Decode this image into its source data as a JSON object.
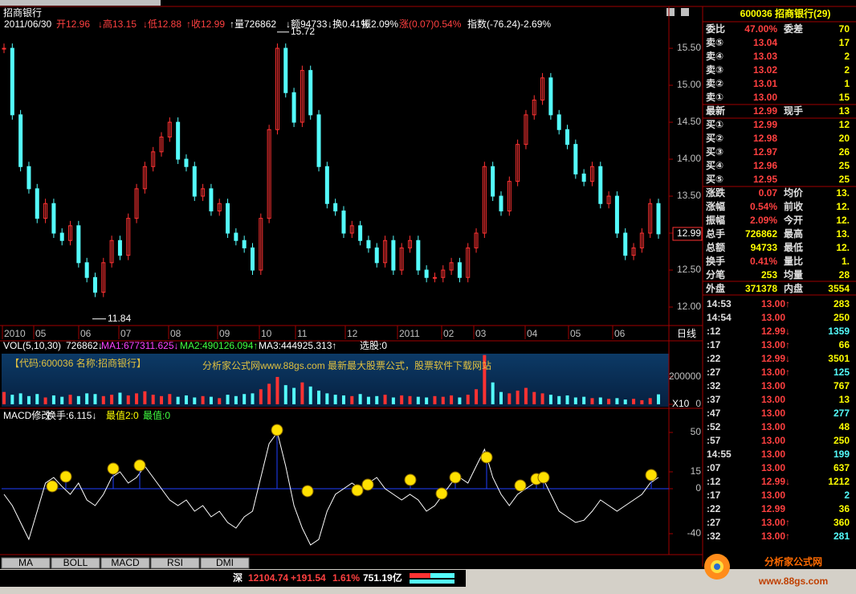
{
  "chart_title": "招商银行",
  "info": [
    {
      "text": "2011/06/30",
      "color": "#ffffff"
    },
    {
      "text": "开12.96",
      "color": "#ff4040"
    },
    {
      "text": "↓高13.15",
      "color": "#ff4040"
    },
    {
      "text": "↓低12.88",
      "color": "#ff4040"
    },
    {
      "text": "↑收12.99",
      "color": "#ff4040"
    },
    {
      "text": "↑量726862",
      "color": "#ffffff"
    },
    {
      "text": "↓额94733",
      "color": "#ffffff"
    },
    {
      "text": "↓换0.41%",
      "color": "#ffffff"
    },
    {
      "text": "振2.09%",
      "color": "#ffffff"
    },
    {
      "text": "涨(0.07)0.54%",
      "color": "#ff4040"
    },
    {
      "text": "指数(-76.24)-2.69%",
      "color": "#ffffff"
    }
  ],
  "price_chart": {
    "type": "candlestick",
    "up_color": "#ff3232",
    "down_color": "#54fcfc",
    "ylim": [
      11.75,
      15.74
    ],
    "yticks": [
      {
        "value": 12,
        "label": "12.00"
      },
      {
        "value": 12.5,
        "label": "12.50"
      },
      {
        "value": 13,
        "label": "13.00"
      },
      {
        "value": 13.5,
        "label": "13.50"
      },
      {
        "value": 14,
        "label": "14.00"
      },
      {
        "value": 14.5,
        "label": "14.50"
      },
      {
        "value": 15,
        "label": "15.00"
      },
      {
        "value": 15.5,
        "label": "15.50"
      }
    ],
    "closes": [
      15.5,
      14.6,
      13.9,
      13.6,
      13.2,
      13.4,
      13.0,
      12.9,
      13.1,
      12.6,
      12.4,
      12.2,
      12.6,
      12.9,
      12.7,
      13.2,
      13.6,
      13.9,
      14.1,
      14.3,
      14.5,
      14.0,
      13.9,
      13.5,
      13.6,
      13.3,
      13.4,
      13.0,
      12.9,
      12.8,
      12.5,
      13.2,
      14.4,
      15.5,
      14.9,
      14.5,
      15.2,
      14.6,
      13.9,
      13.4,
      13.3,
      13.0,
      13.1,
      12.9,
      12.8,
      12.6,
      12.9,
      12.5,
      12.8,
      12.9,
      12.5,
      12.4,
      12.4,
      12.5,
      12.6,
      12.4,
      12.8,
      13.0,
      13.9,
      13.5,
      13.3,
      13.7,
      14.2,
      14.6,
      14.8,
      15.1,
      14.6,
      14.4,
      14.2,
      13.8,
      13.7,
      13.9,
      13.4,
      13.5,
      13.0,
      12.7,
      12.8,
      13.0,
      13.4,
      12.99
    ],
    "high": 15.72,
    "low": 11.84,
    "last": 12.99,
    "dates": [
      "2010",
      "05",
      "06",
      "07",
      "08",
      "09",
      "10",
      "11",
      "12",
      "2011",
      "02",
      "03",
      "04",
      "05",
      "06"
    ],
    "period": "日线"
  },
  "volume": {
    "type": "bar",
    "header": [
      {
        "text": "VOL(5,10,30)",
        "color": "#ffffff"
      },
      {
        "text": "726862↓",
        "color": "#ffffff"
      },
      {
        "text": "MA1:677311.625↓",
        "color": "#ff40ff"
      },
      {
        "text": "MA2:490126.094↑",
        "color": "#40ff40"
      },
      {
        "text": "MA3:444925.313↑",
        "color": "#ffffff"
      },
      {
        "text": "选股:0",
        "color": "#ffffff"
      }
    ],
    "ylim": [
      0,
      370000
    ],
    "yticks": [
      0,
      200000
    ],
    "scale_label": "X10",
    "values": [
      90000,
      70000,
      80000,
      60000,
      75000,
      50000,
      65000,
      55000,
      70000,
      60000,
      80000,
      75000,
      60000,
      70000,
      85000,
      65000,
      80000,
      95000,
      70000,
      60000,
      75000,
      55000,
      65000,
      50000,
      60000,
      55000,
      45000,
      70000,
      60000,
      75000,
      80000,
      110000,
      150000,
      200000,
      140000,
      120000,
      160000,
      130000,
      100000,
      80000,
      70000,
      65000,
      60000,
      75000,
      55000,
      60000,
      70000,
      50000,
      65000,
      60000,
      55000,
      50000,
      60000,
      55000,
      65000,
      50000,
      70000,
      110000,
      360000,
      160000,
      90000,
      80000,
      100000,
      120000,
      90000,
      80000,
      70000,
      60000,
      65000,
      50000,
      55000,
      45000,
      50000,
      40000,
      45000,
      35000,
      40000,
      30000,
      45000,
      72686
    ],
    "overlay": [
      "【代码:600036 名称:招商银行】",
      "分析家公式网www.88gs.com 最新最大股票公式，股票软件下载网站"
    ]
  },
  "macd": {
    "type": "line",
    "color": "#ffffff",
    "header": [
      {
        "text": "MACD修改",
        "color": "#ffffff"
      },
      {
        "text": "换手:6.115↓",
        "color": "#ffffff"
      },
      {
        "text": "最值2:0",
        "color": "#ffff00"
      },
      {
        "text": "最值:0",
        "color": "#40ff40"
      }
    ],
    "ylim": [
      -58.6,
      59.3
    ],
    "yticks": [
      -40,
      0,
      15,
      50
    ],
    "values": [
      -5,
      -15,
      -30,
      -45,
      -20,
      5,
      10,
      2,
      -5,
      5,
      -10,
      -15,
      -5,
      10,
      15,
      5,
      10,
      20,
      10,
      0,
      -10,
      -15,
      -10,
      -20,
      -15,
      -25,
      -20,
      -30,
      -35,
      -25,
      -20,
      10,
      40,
      50,
      20,
      -15,
      -35,
      -50,
      -45,
      -20,
      -5,
      0,
      5,
      0,
      5,
      10,
      0,
      -5,
      -10,
      -5,
      -10,
      -20,
      -15,
      -5,
      5,
      10,
      5,
      20,
      35,
      10,
      -5,
      -15,
      -5,
      0,
      5,
      10,
      -5,
      -20,
      -25,
      -30,
      -28,
      -20,
      -10,
      -15,
      -20,
      -15,
      -10,
      -5,
      5,
      10
    ]
  },
  "tabs": [
    "MA",
    "BOLL",
    "MACD",
    "RSI",
    "DMI"
  ],
  "status": [
    {
      "text": "深",
      "color": "#ffffff"
    },
    {
      "text": "12104.74",
      "color": "#ff4040"
    },
    {
      "text": "+191.54",
      "color": "#ff4040"
    },
    {
      "text": "1.61%",
      "color": "#ff4040"
    },
    {
      "text": "751.19亿",
      "color": "#ffffff"
    }
  ],
  "quote": {
    "title": "600036  招商银行(29)",
    "rows": [
      [
        "委比",
        "47.00%",
        "委差",
        "70"
      ],
      [
        "卖⑤",
        "13.04",
        "17"
      ],
      [
        "卖④",
        "13.03",
        "2"
      ],
      [
        "卖③",
        "13.02",
        "2"
      ],
      [
        "卖②",
        "13.01",
        "1"
      ],
      [
        "卖①",
        "13.00",
        "15"
      ],
      [
        "最新",
        "12.99",
        "现手",
        "13"
      ],
      [
        "买①",
        "12.99",
        "12"
      ],
      [
        "买②",
        "12.98",
        "20"
      ],
      [
        "买③",
        "12.97",
        "26"
      ],
      [
        "买④",
        "12.96",
        "25"
      ],
      [
        "买⑤",
        "12.95",
        "25"
      ],
      [
        "涨跌",
        "0.07",
        "均价",
        "13."
      ],
      [
        "涨幅",
        "0.54%",
        "前收",
        "12."
      ],
      [
        "振幅",
        "2.09%",
        "今开",
        "12."
      ],
      [
        "总手",
        "726862",
        "最高",
        "13."
      ],
      [
        "总额",
        "94733",
        "最低",
        "12."
      ],
      [
        "换手",
        "0.41%",
        "量比",
        "1."
      ],
      [
        "分笔",
        "253",
        "均量",
        "28"
      ],
      [
        "外盘",
        "371378",
        "内盘",
        "3554"
      ]
    ],
    "trades": [
      [
        "14:53",
        "13.00↑",
        "283"
      ],
      [
        "14:54",
        "13.00",
        "250"
      ],
      [
        ":12",
        "12.99↓",
        "1359"
      ],
      [
        ":17",
        "13.00↑",
        "66"
      ],
      [
        ":22",
        "12.99↓",
        "3501"
      ],
      [
        ":27",
        "13.00↑",
        "125"
      ],
      [
        ":32",
        "13.00",
        "767"
      ],
      [
        ":37",
        "13.00",
        "13"
      ],
      [
        ":47",
        "13.00",
        "277"
      ],
      [
        ":52",
        "13.00",
        "48"
      ],
      [
        ":57",
        "13.00",
        "250"
      ],
      [
        "14:55",
        "13.00",
        "199"
      ],
      [
        ":07",
        "13.00",
        "637"
      ],
      [
        ":12",
        "12.99↓",
        "1212"
      ],
      [
        ":17",
        "13.00",
        "2"
      ],
      [
        ":22",
        "12.99",
        "36"
      ],
      [
        ":27",
        "13.00↑",
        "360"
      ],
      [
        ":32",
        "13.00↑",
        "281"
      ]
    ]
  },
  "logo": {
    "text": "分析家公式网",
    "url": "www.88gs.com"
  }
}
